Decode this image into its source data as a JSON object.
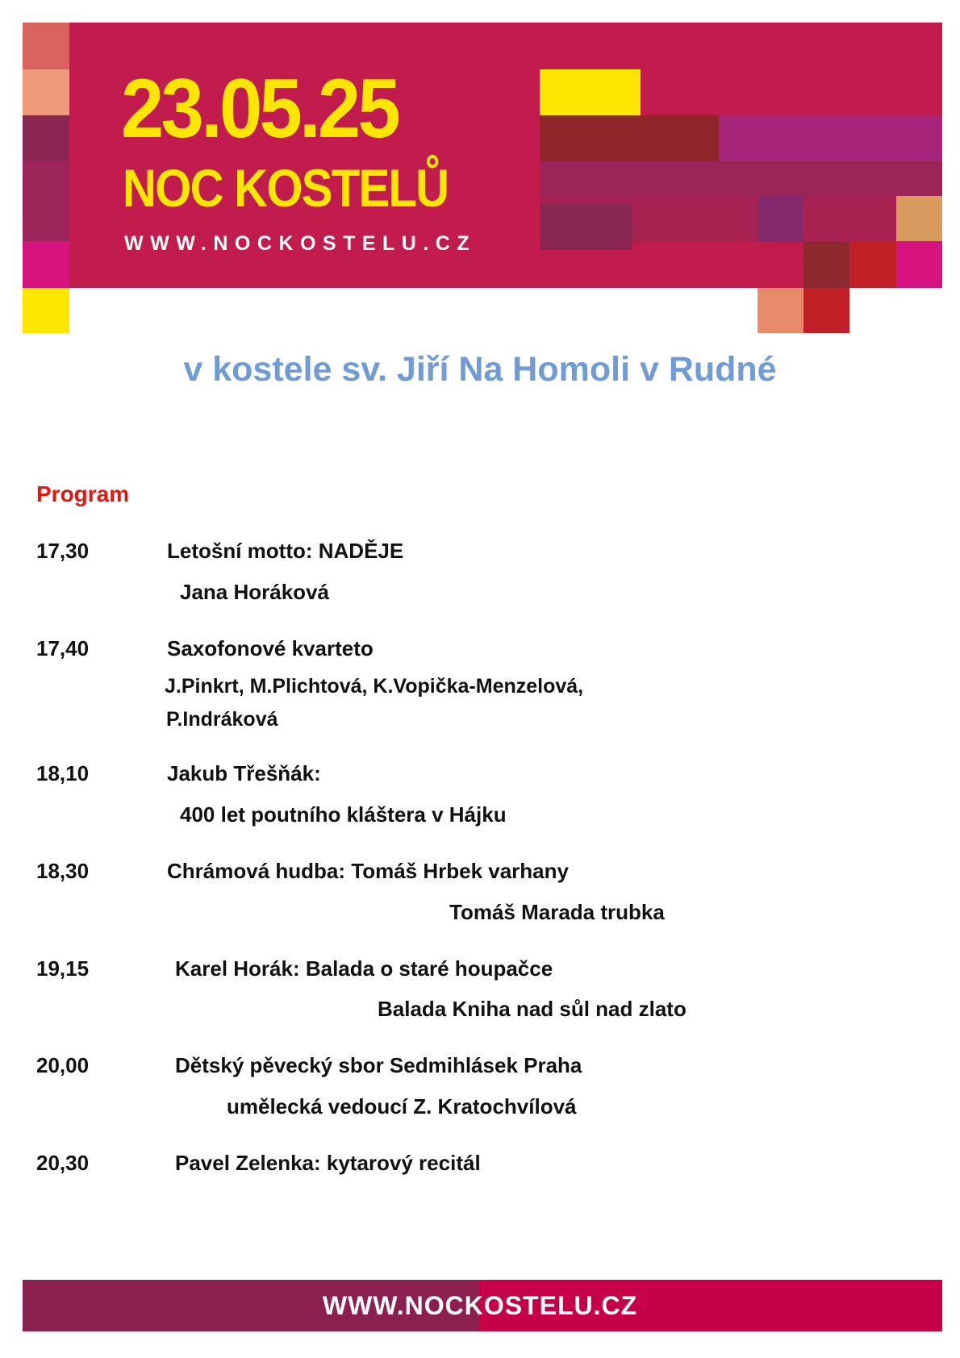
{
  "banner": {
    "date": "23.05.25",
    "title": "NOC KOSTELŮ",
    "url": "WWW.NOCKOSTELU.CZ",
    "colors": {
      "background": "#c21b4e",
      "accent_text": "#ffe600",
      "url_text": "#ffffff"
    }
  },
  "subtitle": "v kostele sv. Jiří Na Homoli v Rudné",
  "program": {
    "heading": "Program",
    "items": [
      {
        "time": "17,30",
        "lines": [
          "Letošní motto: NADĚJE",
          "Jana Horáková"
        ]
      },
      {
        "time": "17,40",
        "lines": [
          "Saxofonové kvarteto",
          "J.Pinkrt, M.Plichtová, K.Vopička-Menzelová,",
          "P.Indráková"
        ]
      },
      {
        "time": "18,10",
        "lines": [
          "Jakub Třešňák:",
          "400 let poutního kláštera v Hájku"
        ]
      },
      {
        "time": "18,30",
        "lines": [
          "Chrámová hudba: Tomáš Hrbek varhany",
          "Tomáš Marada trubka"
        ]
      },
      {
        "time": "19,15",
        "lines": [
          "Karel Horák: Balada o staré houpačce",
          "Balada Kniha nad sůl nad zlato"
        ]
      },
      {
        "time": "20,00",
        "lines": [
          "Dětský pěvecký sbor Sedmihlásek Praha",
          "umělecká vedoucí Z. Kratochvílová"
        ]
      },
      {
        "time": "20,30",
        "lines": [
          "Pavel Zelenka: kytarový recitál"
        ]
      }
    ]
  },
  "footer": {
    "url": "WWW.NOCKOSTELU.CZ",
    "colors": {
      "left": "#8a1f50",
      "right": "#c60046"
    }
  }
}
